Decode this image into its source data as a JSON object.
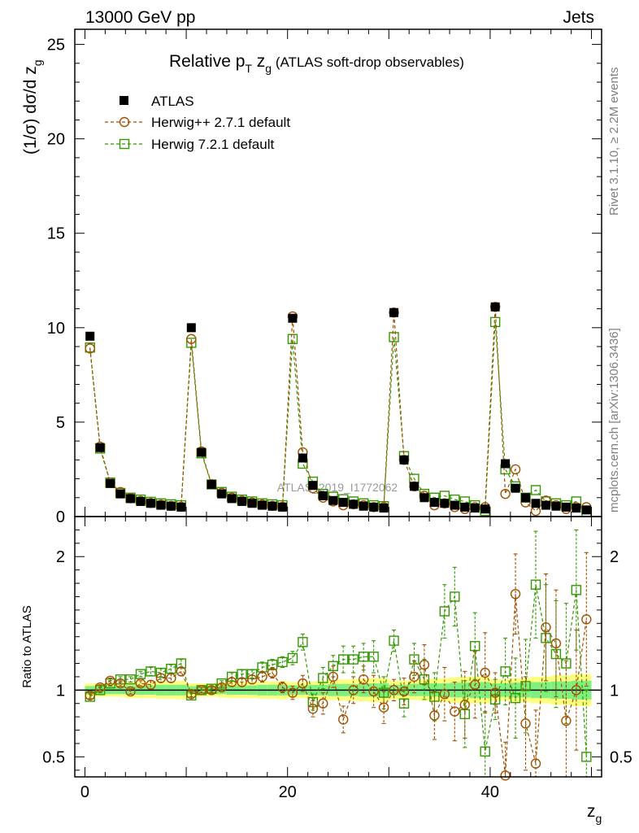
{
  "header": {
    "left": "13000 GeV pp",
    "right": "Jets"
  },
  "side_texts": {
    "rivet": "Rivet 3.1.10, ≥ 2.2M events",
    "mcplots": "mcplots.cern.ch [arXiv:1306.3436]"
  },
  "watermark": "ATLAS_2019_I1772062",
  "chart_data": [
    {
      "type": "scatter",
      "title_parts": {
        "a": "Relative p",
        "sub_t": "T",
        "b": " z",
        "sub_g": "g",
        "c": " (ATLAS soft-drop observables)"
      },
      "ylabel_parts": {
        "a": "(1/σ) dσ/d z",
        "sub": "g"
      },
      "xlabel_parts": {
        "a": "z",
        "sub": "g"
      },
      "xlim": [
        -1,
        51
      ],
      "ylim": [
        0,
        25.8
      ],
      "x_ticks": [
        0,
        20,
        40
      ],
      "y_ticks": [
        0,
        5,
        10,
        15,
        20,
        25
      ],
      "legend_position": "top-left",
      "x": [
        0.5,
        1.5,
        2.5,
        3.5,
        4.5,
        5.5,
        6.5,
        7.5,
        8.5,
        9.5,
        10.5,
        11.5,
        12.5,
        13.5,
        14.5,
        15.5,
        16.5,
        17.5,
        18.5,
        19.5,
        20.5,
        21.5,
        22.5,
        23.5,
        24.5,
        25.5,
        26.5,
        27.5,
        28.5,
        29.5,
        30.5,
        31.5,
        32.5,
        33.5,
        34.5,
        35.5,
        36.5,
        37.5,
        38.5,
        39.5,
        40.5,
        41.5,
        42.5,
        43.5,
        44.5,
        45.5,
        46.5,
        47.5,
        48.5,
        49.5
      ],
      "series": [
        {
          "name": "ATLAS",
          "color": "#000000",
          "marker": "filled-square",
          "values": [
            9.55,
            3.65,
            1.75,
            1.2,
            0.95,
            0.8,
            0.7,
            0.6,
            0.55,
            0.5,
            10.0,
            3.4,
            1.7,
            1.2,
            0.95,
            0.8,
            0.7,
            0.6,
            0.55,
            0.5,
            10.5,
            3.1,
            1.65,
            1.1,
            0.85,
            0.75,
            0.65,
            0.55,
            0.5,
            0.45,
            10.8,
            3.0,
            1.6,
            1.0,
            0.75,
            0.7,
            0.6,
            0.5,
            0.45,
            0.4,
            11.1,
            2.8,
            1.5,
            1.0,
            0.7,
            0.6,
            0.55,
            0.5,
            0.45,
            0.35
          ]
        },
        {
          "name": "Herwig++ 2.7.1 default",
          "color": "#a05000",
          "marker": "open-circle",
          "values": [
            8.9,
            3.7,
            1.8,
            1.3,
            0.97,
            0.83,
            0.72,
            0.63,
            0.57,
            0.52,
            9.4,
            3.45,
            1.72,
            1.25,
            1.0,
            0.84,
            0.74,
            0.64,
            0.57,
            0.52,
            10.6,
            3.4,
            1.5,
            1.0,
            0.8,
            0.6,
            0.65,
            0.6,
            0.5,
            0.5,
            10.8,
            3.0,
            1.6,
            1.1,
            0.6,
            0.7,
            0.5,
            0.4,
            0.5,
            0.5,
            11.1,
            1.2,
            2.5,
            0.75,
            0.3,
            0.85,
            0.6,
            0.4,
            0.5,
            0.5
          ]
        },
        {
          "name": "Herwig 7.2.1 default",
          "color": "#339900",
          "marker": "open-square",
          "values": [
            8.95,
            3.6,
            1.8,
            1.25,
            1.0,
            0.9,
            0.78,
            0.7,
            0.65,
            0.6,
            9.2,
            3.35,
            1.7,
            1.3,
            1.05,
            0.9,
            0.8,
            0.7,
            0.65,
            0.6,
            9.4,
            2.8,
            1.85,
            1.2,
            1.05,
            0.92,
            0.8,
            0.7,
            0.6,
            0.55,
            9.5,
            3.2,
            2.0,
            1.2,
            1.0,
            1.1,
            0.9,
            0.8,
            0.6,
            0.3,
            10.3,
            2.5,
            1.6,
            1.0,
            1.4,
            0.8,
            0.7,
            0.6,
            0.8,
            0.25
          ]
        }
      ]
    },
    {
      "type": "scatter",
      "ylabel": "Ratio to ATLAS",
      "xlim": [
        -1,
        51
      ],
      "ylim": [
        0.35,
        2.3
      ],
      "y_ticks": [
        0.5,
        1,
        2
      ],
      "reference_line": 1,
      "x": [
        0.5,
        1.5,
        2.5,
        3.5,
        4.5,
        5.5,
        6.5,
        7.5,
        8.5,
        9.5,
        10.5,
        11.5,
        12.5,
        13.5,
        14.5,
        15.5,
        16.5,
        17.5,
        18.5,
        19.5,
        20.5,
        21.5,
        22.5,
        23.5,
        24.5,
        25.5,
        26.5,
        27.5,
        28.5,
        29.5,
        30.5,
        31.5,
        32.5,
        33.5,
        34.5,
        35.5,
        36.5,
        37.5,
        38.5,
        39.5,
        40.5,
        41.5,
        42.5,
        43.5,
        44.5,
        45.5,
        46.5,
        47.5,
        48.5,
        49.5
      ],
      "bands": {
        "inner_color": "#7ff07f",
        "outer_color": "#ffff7f",
        "inner_halfwidth": [
          0.03,
          0.03,
          0.03,
          0.03,
          0.035,
          0.035,
          0.035,
          0.04,
          0.04,
          0.04,
          0.03,
          0.03,
          0.03,
          0.03,
          0.035,
          0.035,
          0.035,
          0.04,
          0.04,
          0.04,
          0.035,
          0.035,
          0.04,
          0.04,
          0.045,
          0.045,
          0.045,
          0.05,
          0.05,
          0.05,
          0.04,
          0.04,
          0.045,
          0.045,
          0.05,
          0.05,
          0.055,
          0.055,
          0.06,
          0.06,
          0.05,
          0.05,
          0.055,
          0.055,
          0.06,
          0.06,
          0.065,
          0.065,
          0.07,
          0.07
        ],
        "outer_halfwidth": [
          0.05,
          0.05,
          0.05,
          0.05,
          0.06,
          0.06,
          0.06,
          0.065,
          0.065,
          0.07,
          0.05,
          0.05,
          0.05,
          0.055,
          0.06,
          0.06,
          0.06,
          0.065,
          0.065,
          0.07,
          0.06,
          0.06,
          0.065,
          0.07,
          0.075,
          0.08,
          0.08,
          0.085,
          0.09,
          0.09,
          0.07,
          0.07,
          0.075,
          0.08,
          0.085,
          0.09,
          0.095,
          0.1,
          0.1,
          0.1,
          0.08,
          0.08,
          0.09,
          0.09,
          0.1,
          0.1,
          0.11,
          0.11,
          0.12,
          0.12
        ]
      },
      "series": [
        {
          "name": "Herwig++ 2.7.1 default",
          "color": "#a05000",
          "marker": "open-circle",
          "values": [
            0.96,
            1.02,
            1.07,
            1.05,
            0.99,
            1.05,
            1.04,
            1.09,
            1.09,
            1.14,
            0.97,
            1.0,
            1.0,
            1.02,
            1.06,
            1.06,
            1.08,
            1.1,
            1.13,
            1.02,
            0.98,
            1.05,
            0.86,
            0.9,
            1.1,
            0.78,
            1.0,
            1.08,
            0.99,
            0.87,
            1.0,
            0.99,
            1.1,
            1.19,
            0.81,
            0.97,
            0.84,
            0.89,
            1.04,
            1.13,
            0.98,
            0.36,
            1.72,
            0.75,
            0.45,
            1.47,
            1.35,
            0.77,
            1.0,
            1.53
          ],
          "err_up": [
            0.02,
            0.02,
            0.02,
            0.02,
            0.02,
            0.02,
            0.03,
            0.03,
            0.03,
            0.03,
            0.02,
            0.02,
            0.02,
            0.02,
            0.03,
            0.03,
            0.03,
            0.04,
            0.04,
            0.04,
            0.05,
            0.06,
            0.06,
            0.08,
            0.08,
            0.1,
            0.1,
            0.1,
            0.12,
            0.12,
            0.08,
            0.1,
            0.12,
            0.15,
            0.18,
            0.2,
            0.22,
            0.25,
            0.25,
            0.3,
            0.15,
            0.25,
            0.3,
            0.35,
            0.4,
            0.4,
            0.4,
            0.45,
            0.45,
            0.5
          ],
          "err_down": [
            0.02,
            0.02,
            0.02,
            0.02,
            0.02,
            0.02,
            0.03,
            0.03,
            0.03,
            0.03,
            0.02,
            0.02,
            0.02,
            0.02,
            0.03,
            0.03,
            0.03,
            0.04,
            0.04,
            0.04,
            0.05,
            0.06,
            0.06,
            0.08,
            0.08,
            0.1,
            0.1,
            0.1,
            0.12,
            0.12,
            0.08,
            0.1,
            0.12,
            0.15,
            0.18,
            0.2,
            0.22,
            0.25,
            0.25,
            0.3,
            0.15,
            0.25,
            0.3,
            0.35,
            0.4,
            0.4,
            0.4,
            0.45,
            0.45,
            0.5
          ]
        },
        {
          "name": "Herwig 7.2.1 default",
          "color": "#339900",
          "marker": "open-square",
          "values": [
            0.95,
            1.0,
            1.05,
            1.08,
            1.08,
            1.12,
            1.14,
            1.13,
            1.16,
            1.2,
            0.96,
            1.0,
            1.01,
            1.05,
            1.1,
            1.12,
            1.12,
            1.17,
            1.19,
            1.21,
            1.24,
            1.36,
            0.91,
            1.09,
            1.18,
            1.23,
            1.23,
            1.25,
            1.25,
            0.98,
            1.37,
            0.9,
            1.23,
            1.08,
            0.95,
            1.59,
            1.7,
            0.82,
            1.33,
            0.54,
            0.93,
            1.14,
            0.94,
            1.03,
            1.79,
            1.39,
            1.27,
            1.2,
            1.75,
            0.5
          ],
          "err_up": [
            0.02,
            0.02,
            0.02,
            0.02,
            0.02,
            0.02,
            0.03,
            0.03,
            0.03,
            0.03,
            0.02,
            0.02,
            0.02,
            0.02,
            0.03,
            0.03,
            0.03,
            0.04,
            0.04,
            0.04,
            0.05,
            0.06,
            0.06,
            0.08,
            0.08,
            0.1,
            0.1,
            0.1,
            0.12,
            0.12,
            0.08,
            0.1,
            0.12,
            0.15,
            0.18,
            0.2,
            0.22,
            0.25,
            0.25,
            0.3,
            0.15,
            0.25,
            0.3,
            0.35,
            0.4,
            0.4,
            0.4,
            0.45,
            0.45,
            0.5
          ],
          "err_down": [
            0.02,
            0.02,
            0.02,
            0.02,
            0.02,
            0.02,
            0.03,
            0.03,
            0.03,
            0.03,
            0.02,
            0.02,
            0.02,
            0.02,
            0.03,
            0.03,
            0.03,
            0.04,
            0.04,
            0.04,
            0.05,
            0.06,
            0.06,
            0.08,
            0.08,
            0.1,
            0.1,
            0.1,
            0.12,
            0.12,
            0.08,
            0.1,
            0.12,
            0.15,
            0.18,
            0.2,
            0.22,
            0.25,
            0.25,
            0.3,
            0.15,
            0.25,
            0.3,
            0.35,
            0.4,
            0.4,
            0.4,
            0.45,
            0.45,
            0.5
          ]
        }
      ]
    }
  ]
}
